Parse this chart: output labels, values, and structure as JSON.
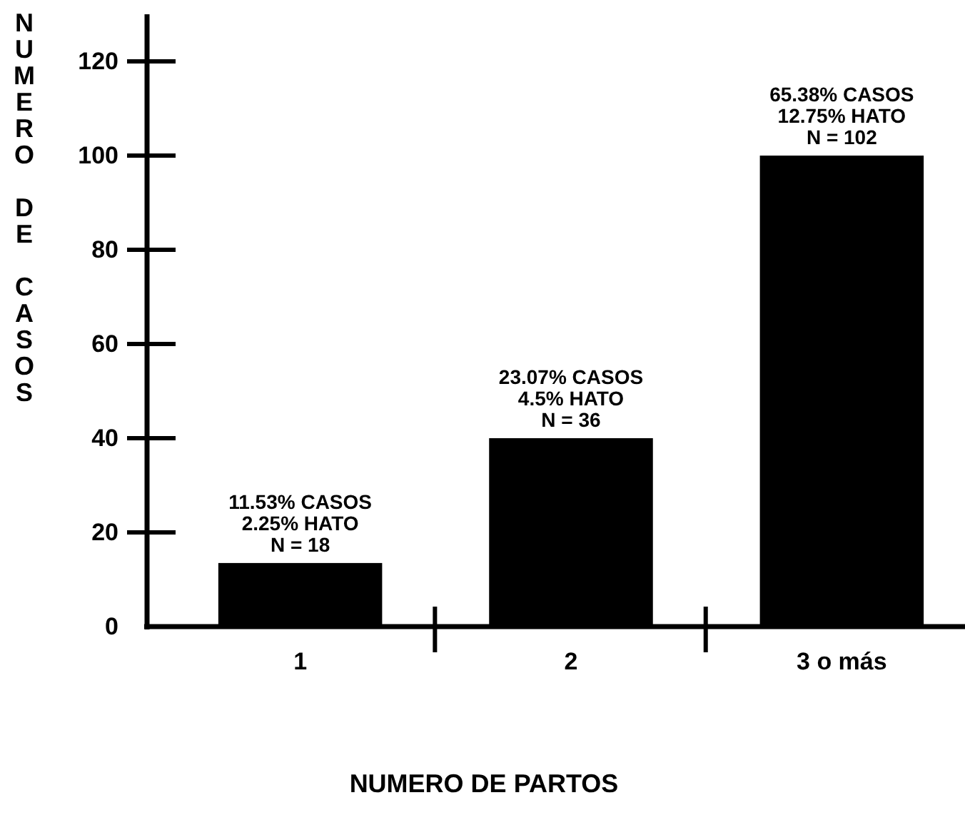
{
  "chart_data": {
    "type": "bar",
    "xlabel": "NUMERO DE PARTOS",
    "ylabel": "NUMERO DE CASOS",
    "categories": [
      "1",
      "2",
      "3 o más"
    ],
    "values": [
      13.5,
      40,
      100
    ],
    "color": "#000000",
    "ylim": [
      0,
      130
    ],
    "yticks": [
      0,
      20,
      40,
      60,
      80,
      100,
      120
    ],
    "grid": false,
    "annotations": [
      {
        "text": "11.53% CASOS\n2.25% HATO\nN = 18",
        "x": "1",
        "y": 13.5
      },
      {
        "text": "23.07% CASOS\n4.5% HATO\nN = 36",
        "x": "2",
        "y": 40
      },
      {
        "text": "65.38% CASOS\n12.75% HATO\nN = 102",
        "x": "3 o más",
        "y": 100
      }
    ]
  }
}
